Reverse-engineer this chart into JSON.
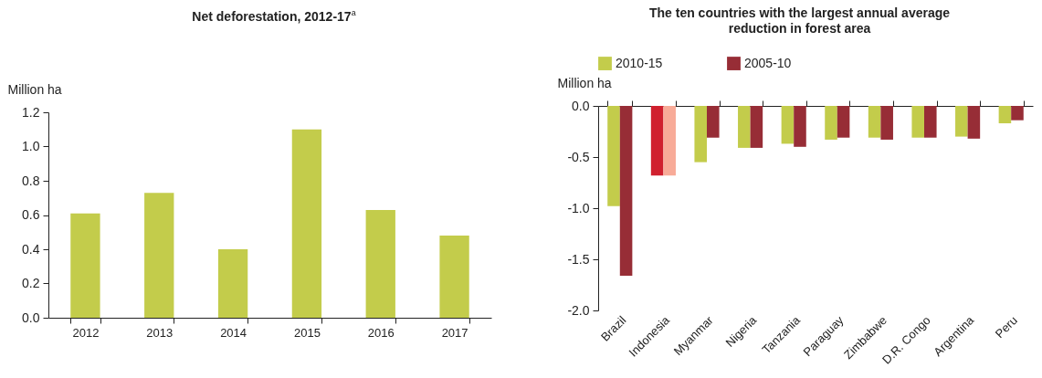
{
  "chart_data": [
    {
      "type": "bar",
      "title": "Net deforestation, 2012-17$^{a}$",
      "ylabel": "Million ha",
      "categories": [
        "2012",
        "2013",
        "2014",
        "2015",
        "2016",
        "2017"
      ],
      "series": [
        {
          "color": "#c3cc4b",
          "values": [
            0.61,
            0.73,
            0.4,
            1.1,
            0.63,
            0.48
          ]
        }
      ],
      "ylim": [
        0,
        1.2
      ],
      "yticks": [
        {
          "value": 0,
          "label": "0.0"
        },
        0.2,
        0.4,
        0.6,
        0.8,
        {
          "value": 1,
          "label": "1.0"
        },
        1.2
      ]
    },
    {
      "type": "bar",
      "title": "The ten countries with the largest annual average reduction in forest area",
      "ylabel": "Million ha",
      "legend": "top",
      "categories": [
        "Brazil",
        "Indonesia",
        "Myanmar",
        "Nigeria",
        "Tanzania",
        "Paraguay",
        "Zimbabwe",
        "D.R. Congo",
        "Argentina",
        "Peru"
      ],
      "series": [
        {
          "name": "2010-15",
          "color": "#c3cc4b",
          "colors": [
            "#c3cc4b",
            "#d0202e",
            "#c3cc4b",
            "#c3cc4b",
            "#c3cc4b",
            "#c3cc4b",
            "#c3cc4b",
            "#c3cc4b",
            "#c3cc4b",
            "#c3cc4b"
          ],
          "values": [
            -0.98,
            -0.68,
            -0.55,
            -0.41,
            -0.37,
            -0.33,
            -0.31,
            -0.31,
            -0.3,
            -0.17
          ]
        },
        {
          "name": "2005-10",
          "color": "#972d36",
          "colors": [
            "#972d36",
            "#f8ab98",
            "#972d36",
            "#972d36",
            "#972d36",
            "#972d36",
            "#972d36",
            "#972d36",
            "#972d36",
            "#972d36"
          ],
          "values": [
            -1.66,
            -0.68,
            -0.31,
            -0.41,
            -0.4,
            -0.31,
            -0.33,
            -0.31,
            -0.32,
            -0.14
          ]
        }
      ],
      "ylim": [
        -2,
        0
      ],
      "yticks": [
        {
          "value": -2,
          "label": "-2.0"
        },
        -1.5,
        {
          "value": -1,
          "label": "-1.0"
        },
        -0.5,
        {
          "value": 0,
          "label": "0.0"
        }
      ]
    }
  ]
}
